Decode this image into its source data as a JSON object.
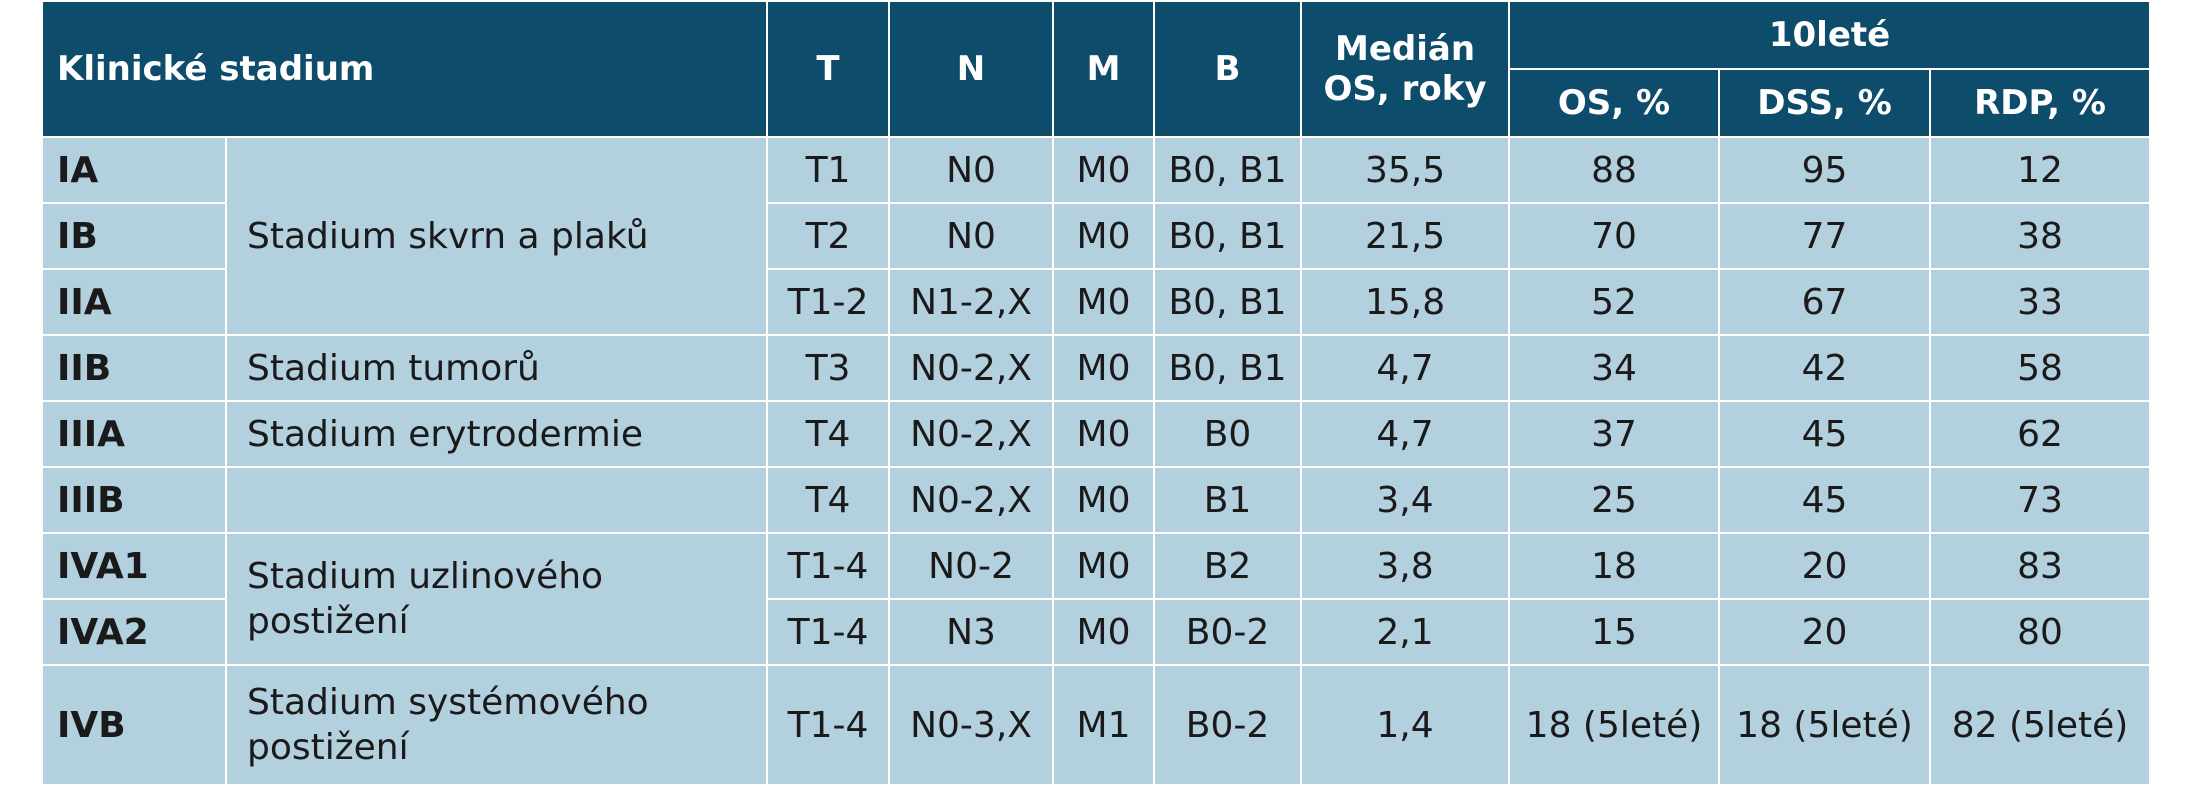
{
  "header": {
    "stage": "Klinické stadium",
    "t": "T",
    "n": "N",
    "m": "M",
    "b": "B",
    "median_line1": "Medián",
    "median_line2": "OS, roky",
    "tenyear": "10leté",
    "os": "OS, %",
    "dss": "DSS, %",
    "rdp": "RDP, %"
  },
  "groups": {
    "g1": "Stadium skvrn a plaků",
    "g2": "Stadium tumorů",
    "g3": "Stadium erytrodermie",
    "g4_line1": "Stadium uzlinového",
    "g4_line2": "postižení",
    "g5_line1": "Stadium systémového",
    "g5_line2": "postižení"
  },
  "rows": [
    {
      "stage": "IA",
      "t": "T1",
      "n": "N0",
      "m": "M0",
      "b": "B0, B1",
      "median": "35,5",
      "os": "88",
      "dss": "95",
      "rdp": "12"
    },
    {
      "stage": "IB",
      "t": "T2",
      "n": "N0",
      "m": "M0",
      "b": "B0, B1",
      "median": "21,5",
      "os": "70",
      "dss": "77",
      "rdp": "38"
    },
    {
      "stage": "IIA",
      "t": "T1-2",
      "n": "N1-2,X",
      "m": "M0",
      "b": "B0, B1",
      "median": "15,8",
      "os": "52",
      "dss": "67",
      "rdp": "33"
    },
    {
      "stage": "IIB",
      "t": "T3",
      "n": "N0-2,X",
      "m": "M0",
      "b": "B0, B1",
      "median": "4,7",
      "os": "34",
      "dss": "42",
      "rdp": "58"
    },
    {
      "stage": "IIIA",
      "t": "T4",
      "n": "N0-2,X",
      "m": "M0",
      "b": "B0",
      "median": "4,7",
      "os": "37",
      "dss": "45",
      "rdp": "62"
    },
    {
      "stage": "IIIB",
      "t": "T4",
      "n": "N0-2,X",
      "m": "M0",
      "b": "B1",
      "median": "3,4",
      "os": "25",
      "dss": "45",
      "rdp": "73"
    },
    {
      "stage": "IVA1",
      "t": "T1-4",
      "n": "N0-2",
      "m": "M0",
      "b": "B2",
      "median": "3,8",
      "os": "18",
      "dss": "20",
      "rdp": "83"
    },
    {
      "stage": "IVA2",
      "t": "T1-4",
      "n": "N3",
      "m": "M0",
      "b": "B0-2",
      "median": "2,1",
      "os": "15",
      "dss": "20",
      "rdp": "80"
    },
    {
      "stage": "IVB",
      "t": "T1-4",
      "n": "N0-3,X",
      "m": "M1",
      "b": "B0-2",
      "median": "1,4",
      "os": "18 (5leté)",
      "dss": "18 (5leté)",
      "rdp": "82 (5leté)"
    }
  ],
  "colors": {
    "header_bg": "#0d4c6b",
    "body_bg": "#b3d0df"
  }
}
